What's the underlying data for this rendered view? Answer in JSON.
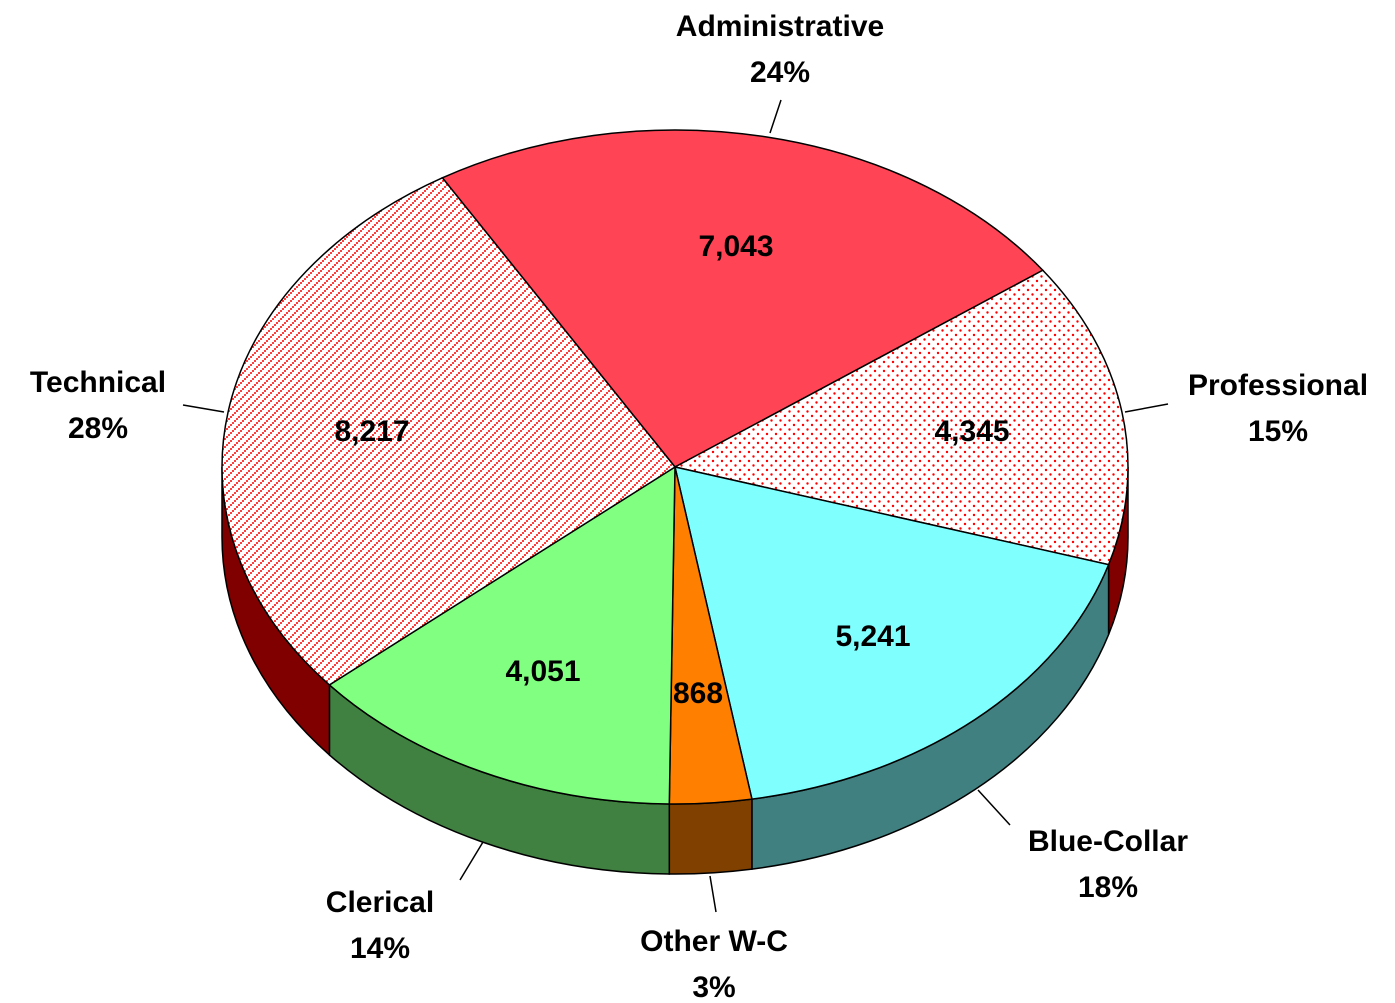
{
  "chart_data": {
    "type": "pie",
    "categories": [
      "Administrative",
      "Professional",
      "Blue-Collar",
      "Other W-C",
      "Clerical",
      "Technical"
    ],
    "values": [
      7043,
      4345,
      5241,
      868,
      4051,
      8217
    ],
    "value_labels": [
      "7,043",
      "4,345",
      "5,241",
      "868",
      "4,051",
      "8,217"
    ],
    "percent_labels": [
      "24%",
      "15%",
      "18%",
      "3%",
      "14%",
      "28%"
    ],
    "colors": [
      "#ff4455",
      "#ff0000",
      "#80ffff",
      "#ff8000",
      "#80ff80",
      "#ff0000"
    ],
    "side_colors": [
      "#800000",
      "#800000",
      "#408080",
      "#804000",
      "#408040",
      "#800000"
    ],
    "patterns": [
      "solid",
      "dots",
      "solid",
      "solid",
      "solid",
      "diagonal-dots"
    ]
  }
}
